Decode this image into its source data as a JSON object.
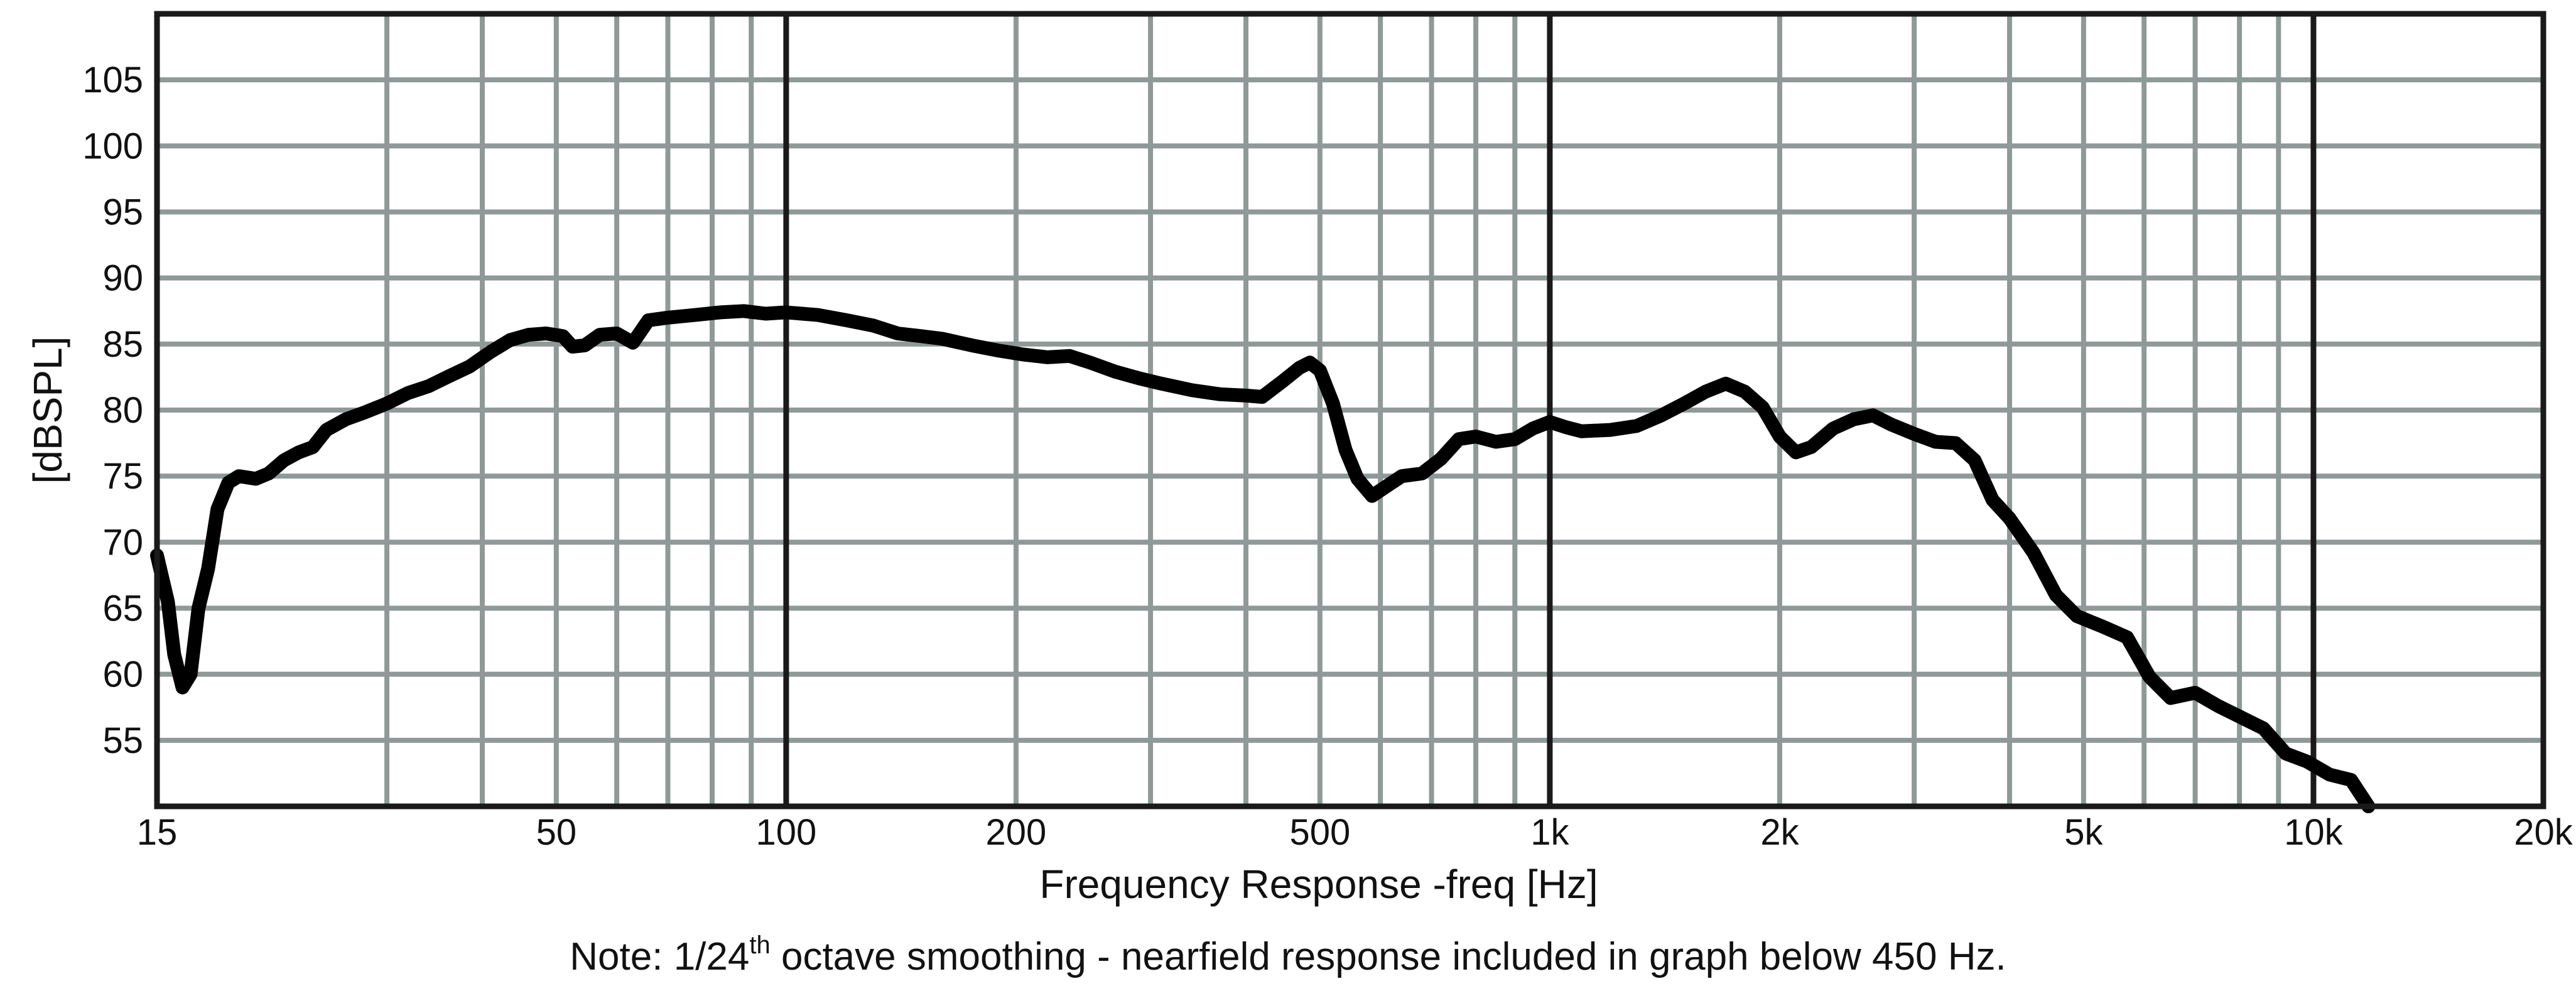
{
  "chart_data": {
    "type": "line",
    "title": "",
    "xlabel": "Frequency Response -freq [Hz]",
    "ylabel": "[dBSPL]",
    "x_scale": "log",
    "xlim": [
      15,
      20000
    ],
    "ylim": [
      50,
      110
    ],
    "grid": true,
    "x_ticks": [
      {
        "value": 15,
        "label": "15"
      },
      {
        "value": 50,
        "label": "50"
      },
      {
        "value": 100,
        "label": "100"
      },
      {
        "value": 200,
        "label": "200"
      },
      {
        "value": 500,
        "label": "500"
      },
      {
        "value": 1000,
        "label": "1k"
      },
      {
        "value": 2000,
        "label": "2k"
      },
      {
        "value": 5000,
        "label": "5k"
      },
      {
        "value": 10000,
        "label": "10k"
      },
      {
        "value": 20000,
        "label": "20k"
      }
    ],
    "y_ticks": [
      55,
      60,
      65,
      70,
      75,
      80,
      85,
      90,
      95,
      100,
      105
    ],
    "x_minor_grid": [
      30,
      40,
      50,
      60,
      70,
      80,
      90,
      200,
      300,
      400,
      500,
      600,
      700,
      800,
      900,
      2000,
      3000,
      4000,
      5000,
      6000,
      7000,
      8000,
      9000
    ],
    "x_major_grid": [
      100,
      1000,
      10000
    ],
    "series": [
      {
        "color": "#000000",
        "points": [
          [
            15,
            69
          ],
          [
            15.5,
            65.5
          ],
          [
            15.8,
            61.5
          ],
          [
            16.2,
            59
          ],
          [
            16.6,
            60
          ],
          [
            17,
            65
          ],
          [
            17.5,
            68
          ],
          [
            18,
            72.5
          ],
          [
            18.6,
            74.5
          ],
          [
            19.2,
            75
          ],
          [
            20.2,
            74.8
          ],
          [
            21,
            75.2
          ],
          [
            22,
            76.2
          ],
          [
            23,
            76.8
          ],
          [
            24,
            77.2
          ],
          [
            25,
            78.5
          ],
          [
            26.5,
            79.3
          ],
          [
            28,
            79.8
          ],
          [
            30,
            80.5
          ],
          [
            32,
            81.3
          ],
          [
            34,
            81.8
          ],
          [
            36,
            82.5
          ],
          [
            38.5,
            83.3
          ],
          [
            41,
            84.4
          ],
          [
            43.5,
            85.3
          ],
          [
            46,
            85.7
          ],
          [
            48.5,
            85.8
          ],
          [
            51,
            85.6
          ],
          [
            52.5,
            84.8
          ],
          [
            54.5,
            84.9
          ],
          [
            57,
            85.7
          ],
          [
            60,
            85.8
          ],
          [
            63,
            85.1
          ],
          [
            66,
            86.8
          ],
          [
            70,
            87.0
          ],
          [
            76,
            87.2
          ],
          [
            82,
            87.4
          ],
          [
            88,
            87.5
          ],
          [
            94,
            87.3
          ],
          [
            100,
            87.4
          ],
          [
            110,
            87.2
          ],
          [
            120,
            86.8
          ],
          [
            130,
            86.4
          ],
          [
            140,
            85.8
          ],
          [
            150,
            85.6
          ],
          [
            160,
            85.4
          ],
          [
            175,
            84.9
          ],
          [
            190,
            84.5
          ],
          [
            205,
            84.2
          ],
          [
            220,
            84.0
          ],
          [
            235,
            84.1
          ],
          [
            250,
            83.6
          ],
          [
            270,
            82.9
          ],
          [
            290,
            82.4
          ],
          [
            310,
            82.0
          ],
          [
            340,
            81.5
          ],
          [
            370,
            81.2
          ],
          [
            400,
            81.1
          ],
          [
            420,
            81.0
          ],
          [
            445,
            82.1
          ],
          [
            470,
            83.2
          ],
          [
            485,
            83.6
          ],
          [
            500,
            83.0
          ],
          [
            520,
            80.5
          ],
          [
            540,
            77.0
          ],
          [
            560,
            74.8
          ],
          [
            585,
            73.5
          ],
          [
            610,
            74.2
          ],
          [
            640,
            75.0
          ],
          [
            680,
            75.2
          ],
          [
            720,
            76.3
          ],
          [
            760,
            77.8
          ],
          [
            800,
            78.0
          ],
          [
            850,
            77.6
          ],
          [
            900,
            77.8
          ],
          [
            950,
            78.6
          ],
          [
            1000,
            79.1
          ],
          [
            1050,
            78.7
          ],
          [
            1100,
            78.4
          ],
          [
            1200,
            78.5
          ],
          [
            1300,
            78.8
          ],
          [
            1400,
            79.6
          ],
          [
            1500,
            80.5
          ],
          [
            1600,
            81.4
          ],
          [
            1700,
            82.0
          ],
          [
            1800,
            81.4
          ],
          [
            1900,
            80.2
          ],
          [
            2000,
            78.0
          ],
          [
            2100,
            76.8
          ],
          [
            2200,
            77.2
          ],
          [
            2350,
            78.6
          ],
          [
            2500,
            79.3
          ],
          [
            2650,
            79.6
          ],
          [
            2800,
            78.9
          ],
          [
            3000,
            78.2
          ],
          [
            3200,
            77.6
          ],
          [
            3400,
            77.5
          ],
          [
            3600,
            76.2
          ],
          [
            3800,
            73.2
          ],
          [
            4000,
            71.8
          ],
          [
            4300,
            69.2
          ],
          [
            4600,
            66.0
          ],
          [
            4900,
            64.4
          ],
          [
            5300,
            63.6
          ],
          [
            5700,
            62.8
          ],
          [
            6100,
            59.8
          ],
          [
            6500,
            58.2
          ],
          [
            7000,
            58.6
          ],
          [
            7500,
            57.6
          ],
          [
            8000,
            56.8
          ],
          [
            8600,
            55.9
          ],
          [
            9200,
            54.0
          ],
          [
            9800,
            53.4
          ],
          [
            10500,
            52.4
          ],
          [
            11200,
            52.0
          ],
          [
            11800,
            50.0
          ]
        ]
      }
    ]
  },
  "note": {
    "prefix": "Note: 1/24",
    "superscript": "th",
    "suffix": " octave smoothing - nearfield response included in graph below 450 Hz."
  }
}
